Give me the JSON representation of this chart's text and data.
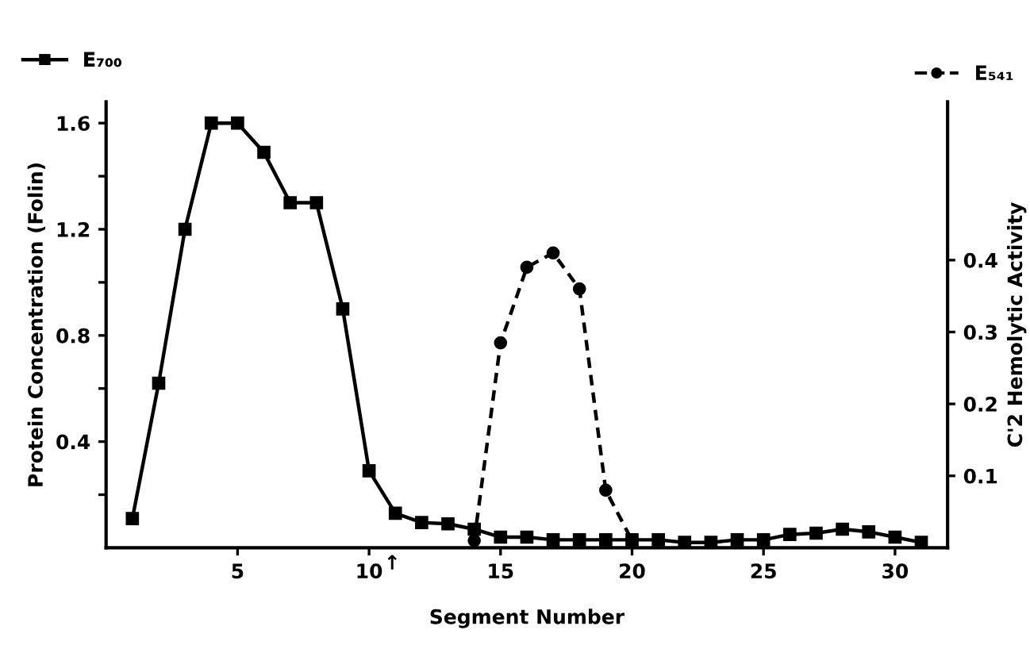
{
  "chart_data": {
    "type": "line",
    "xlabel": "Segment Number",
    "ylabel": "Protein Concentration (Folin)",
    "y2label": "C'2 Hemolytic Activity",
    "series": [
      {
        "name": "E₇₀₀",
        "color": "#000000",
        "marker": "square",
        "line_style": "solid",
        "x": [
          1,
          2,
          3,
          4,
          5,
          6,
          7,
          8,
          9,
          10,
          11,
          12,
          13,
          14,
          15,
          16,
          17,
          18,
          19,
          20,
          21,
          22,
          23,
          24,
          25,
          26,
          27,
          28,
          29,
          30,
          31
        ],
        "values": [
          0.11,
          0.62,
          1.2,
          1.6,
          1.6,
          1.49,
          1.3,
          1.3,
          0.9,
          0.29,
          0.13,
          0.095,
          0.09,
          0.07,
          0.04,
          0.04,
          0.03,
          0.03,
          0.03,
          0.03,
          0.03,
          0.02,
          0.02,
          0.03,
          0.03,
          0.05,
          0.055,
          0.07,
          0.06,
          0.04,
          0.02
        ]
      },
      {
        "name": "E₅₄₁",
        "color": "#000000",
        "marker": "circle",
        "line_style": "dashed",
        "axis": "y2",
        "x": [
          14,
          15,
          16,
          17,
          18,
          19,
          20
        ],
        "values": [
          0.01,
          0.285,
          0.39,
          0.41,
          0.36,
          0.08,
          0.01
        ]
      }
    ],
    "xlim": [
      0,
      32
    ],
    "xticks": [
      5,
      10,
      15,
      20,
      25,
      30
    ],
    "ylim": [
      0,
      1.68
    ],
    "yticks": [
      {
        "value": 0.2,
        "label": null
      },
      0.4,
      {
        "value": 0.6,
        "label": null
      },
      0.8,
      {
        "value": 1.0,
        "label": null
      },
      1.2,
      {
        "value": 1.4,
        "label": null
      },
      1.6
    ],
    "y2lim": [
      0,
      0.62
    ],
    "y2ticks": [
      0.1,
      0.2,
      0.3,
      0.4
    ],
    "annotations": [
      "↑"
    ],
    "legend": "top",
    "grid": false
  }
}
